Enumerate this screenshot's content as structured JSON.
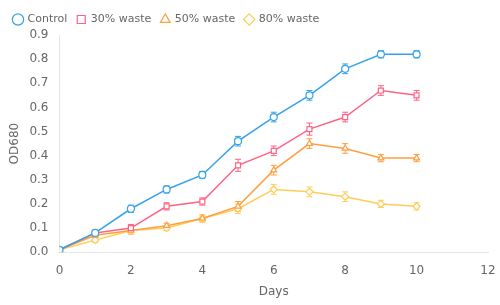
{
  "chart_data": {
    "type": "line",
    "x": [
      0,
      1,
      2,
      3,
      4,
      5,
      6,
      7,
      8,
      9,
      10
    ],
    "series": [
      {
        "name": "Control",
        "marker": "circle",
        "values": [
          0.01,
          0.08,
          0.18,
          0.26,
          0.32,
          0.46,
          0.56,
          0.65,
          0.76,
          0.82,
          0.82
        ],
        "errors": [
          0.005,
          0.01,
          0.015,
          0.015,
          0.015,
          0.02,
          0.02,
          0.02,
          0.02,
          0.015,
          0.015
        ]
      },
      {
        "name": "30% waste",
        "marker": "square",
        "values": [
          0.01,
          0.08,
          0.1,
          0.19,
          0.21,
          0.36,
          0.42,
          0.51,
          0.56,
          0.67,
          0.65
        ],
        "errors": [
          0.005,
          0.01,
          0.015,
          0.015,
          0.015,
          0.025,
          0.02,
          0.025,
          0.02,
          0.02,
          0.02
        ]
      },
      {
        "name": "50% waste",
        "marker": "triangle",
        "values": [
          0.01,
          0.07,
          0.09,
          0.11,
          0.14,
          0.19,
          0.34,
          0.45,
          0.43,
          0.39,
          0.39
        ],
        "errors": [
          0.005,
          0.01,
          0.015,
          0.01,
          0.015,
          0.02,
          0.02,
          0.02,
          0.02,
          0.015,
          0.015
        ]
      },
      {
        "name": "80% waste",
        "marker": "diamond",
        "values": [
          0.01,
          0.05,
          0.09,
          0.1,
          0.14,
          0.18,
          0.26,
          0.25,
          0.23,
          0.2,
          0.19
        ],
        "errors": [
          0.005,
          0.01,
          0.01,
          0.01,
          0.015,
          0.02,
          0.02,
          0.02,
          0.02,
          0.015,
          0.015
        ]
      }
    ],
    "x_label": "Days",
    "y_label": "OD680",
    "xlim": [
      0,
      12
    ],
    "ylim": [
      0,
      0.9
    ],
    "xticks": [
      0,
      2,
      4,
      6,
      8,
      10,
      12
    ],
    "yticks": [
      {
        "value": 0.0,
        "label": "0.0"
      },
      0.1,
      0.2,
      0.3,
      0.4,
      0.5,
      0.6,
      0.7,
      0.8,
      0.9
    ],
    "grid": false,
    "legend": "upper left"
  }
}
